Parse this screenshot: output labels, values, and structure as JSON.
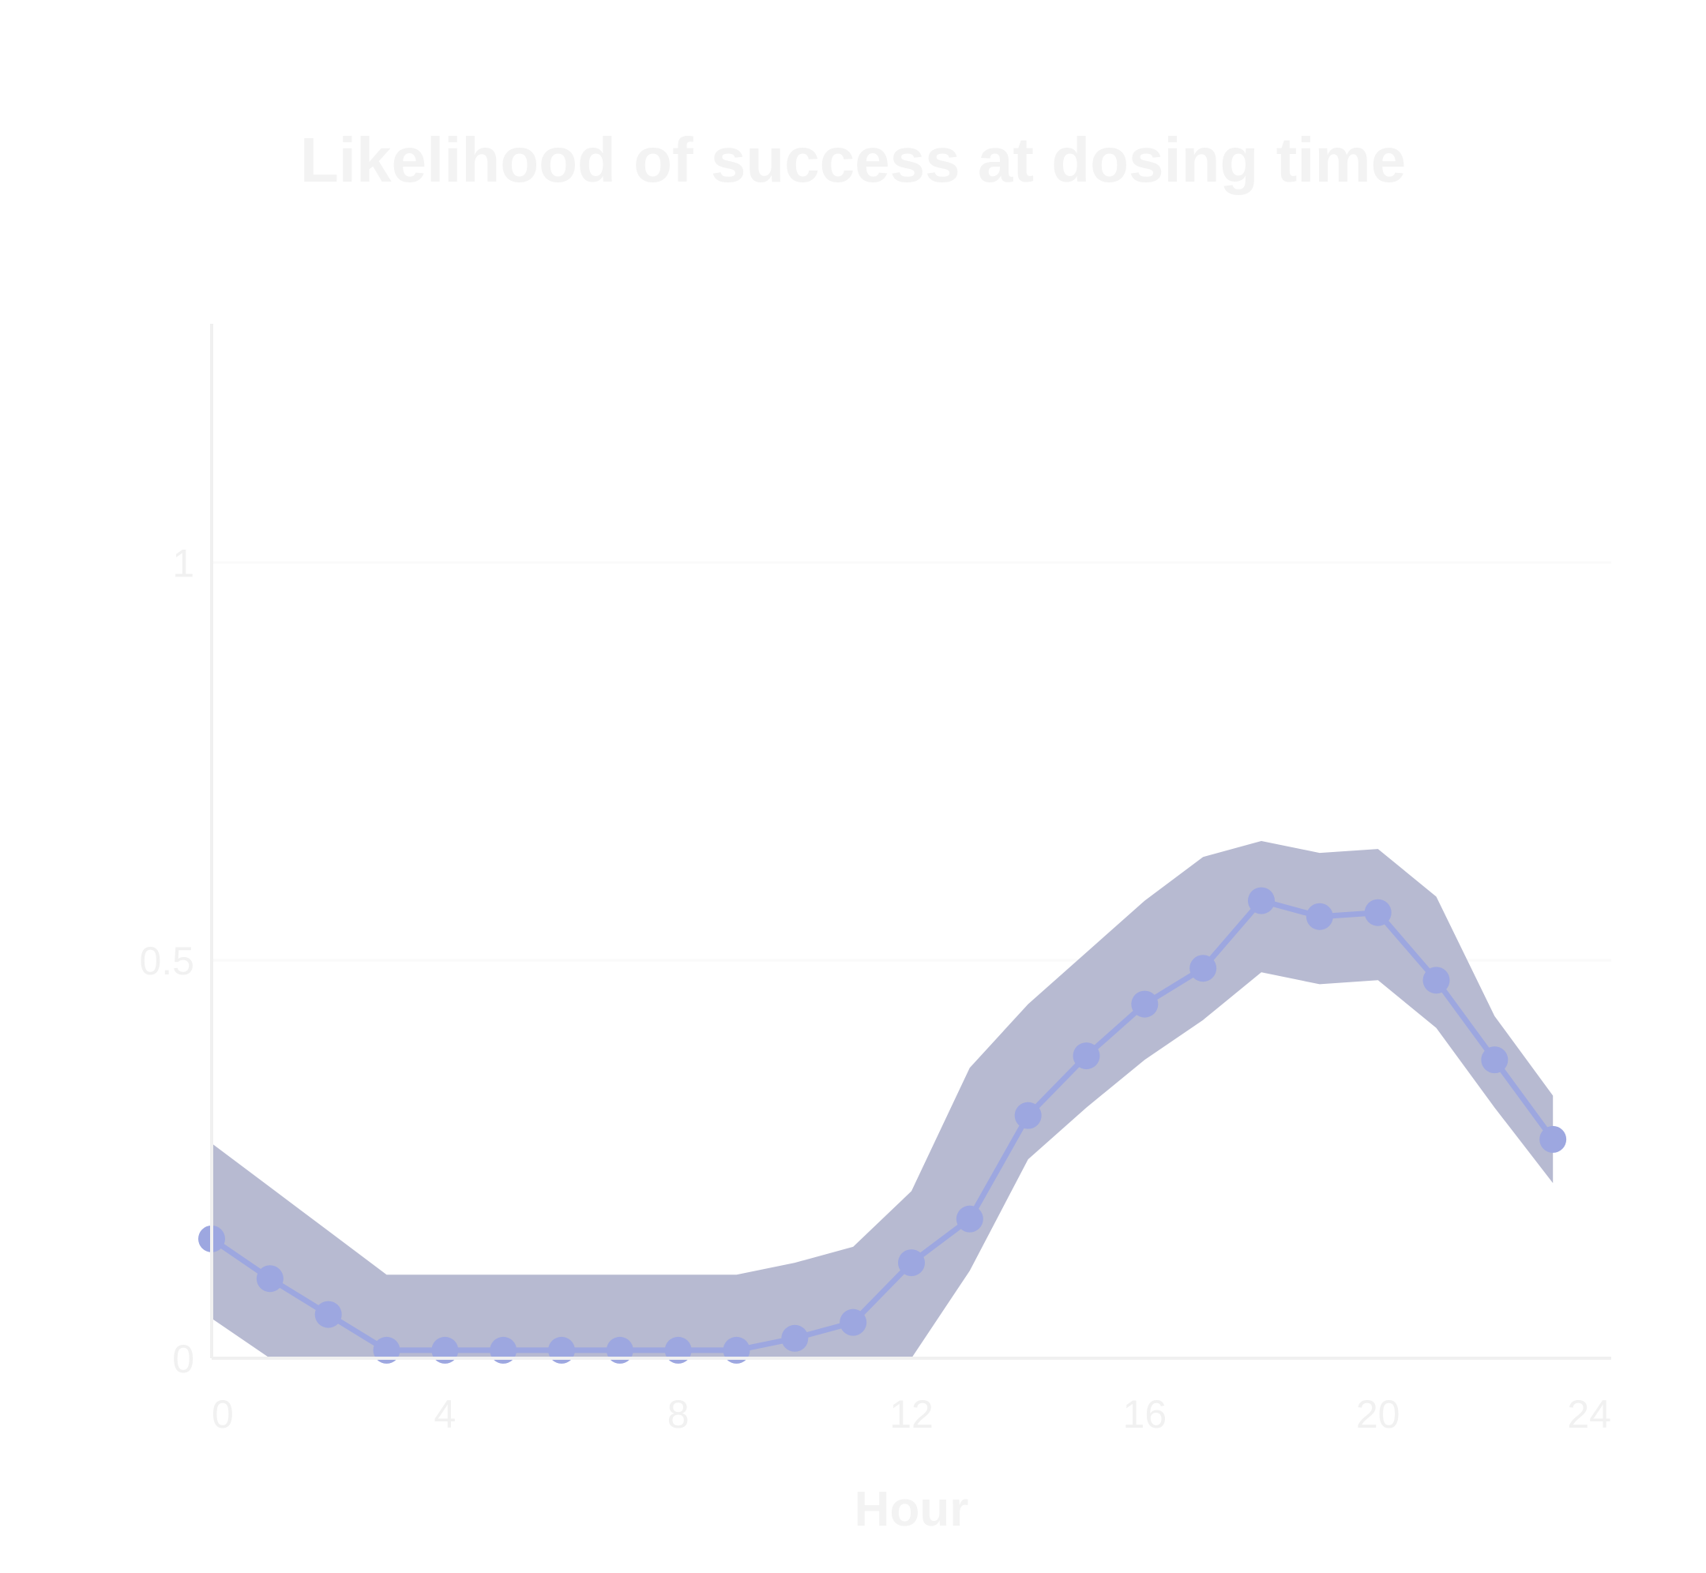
{
  "colors": {
    "background": "#ffffff",
    "title_text": "#f3f3f3",
    "axis_text": "#f3f3f3",
    "tick_text": "#f1f1f1",
    "axis_line": "#f0f0f0",
    "grid_line": "#fafafa",
    "band_fill": "#b7bad1",
    "line_stroke": "#9da7e0",
    "marker_fill": "#9da7e0"
  },
  "chart_data": {
    "type": "line",
    "title": "Likelihood of success at dosing time",
    "xlabel": "Hour",
    "ylabel": "",
    "xlim": [
      0,
      24
    ],
    "ylim": [
      0,
      1.3
    ],
    "x_ticks": [
      "0",
      "4",
      "8",
      "12",
      "16",
      "20",
      "24"
    ],
    "y_ticks": [
      "0",
      "0.5",
      "1"
    ],
    "grid": "horizontal",
    "legend": "none",
    "series": [
      {
        "x": [
          0,
          1,
          2,
          3,
          4,
          5,
          6,
          7,
          8,
          9,
          10,
          11,
          12,
          13,
          14,
          15,
          16,
          17,
          18,
          19,
          20,
          21,
          22,
          23
        ],
        "y": [
          0.15,
          0.1,
          0.055,
          0.01,
          0.01,
          0.01,
          0.01,
          0.01,
          0.01,
          0.01,
          0.025,
          0.045,
          0.12,
          0.175,
          0.305,
          0.38,
          0.445,
          0.49,
          0.575,
          0.555,
          0.56,
          0.475,
          0.375,
          0.275
        ],
        "band_upper": [
          0.27,
          0.215,
          0.16,
          0.105,
          0.105,
          0.105,
          0.105,
          0.105,
          0.105,
          0.105,
          0.12,
          0.14,
          0.21,
          0.365,
          0.445,
          0.51,
          0.575,
          0.63,
          0.65,
          0.635,
          0.64,
          0.58,
          0.43,
          0.33
        ],
        "band_lower": [
          0.05,
          0.0,
          0.0,
          0.0,
          0.0,
          0.0,
          0.0,
          0.0,
          0.0,
          0.0,
          0.0,
          0.0,
          0.0,
          0.11,
          0.25,
          0.315,
          0.375,
          0.425,
          0.485,
          0.47,
          0.475,
          0.415,
          0.315,
          0.22
        ]
      }
    ]
  }
}
